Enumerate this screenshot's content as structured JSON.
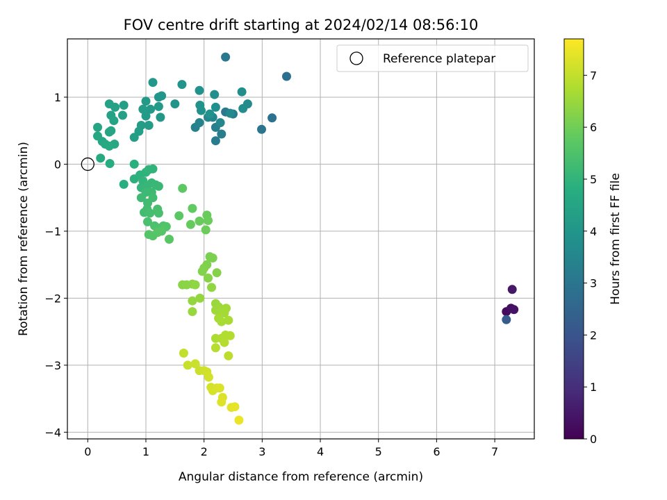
{
  "chart_data": {
    "type": "scatter",
    "title": "FOV centre drift starting at 2024/02/14 08:56:10",
    "xlabel": "Angular distance from reference (arcmin)",
    "ylabel": "Rotation from reference (arcmin)",
    "xlim": [
      -0.35,
      7.68
    ],
    "ylim": [
      -4.1,
      1.87
    ],
    "xticks": [
      0,
      1,
      2,
      3,
      4,
      5,
      6,
      7
    ],
    "yticks": [
      -4,
      -3,
      -2,
      -1,
      0,
      1
    ],
    "grid": true,
    "legend": {
      "placement": "top-right",
      "entries": [
        "Reference platepar"
      ]
    },
    "colorbar": {
      "label": "Hours from first FF file",
      "range": [
        0,
        7.7
      ],
      "ticks": [
        0,
        1,
        2,
        3,
        4,
        5,
        6,
        7
      ],
      "colormap": "viridis"
    },
    "reference": {
      "x": 0,
      "y": 0
    },
    "points": [
      {
        "x": 7.2,
        "y": -2.2,
        "h": 0.2
      },
      {
        "x": 7.28,
        "y": -2.15,
        "h": 0.3
      },
      {
        "x": 7.33,
        "y": -2.17,
        "h": 0.4
      },
      {
        "x": 7.3,
        "y": -1.87,
        "h": 0.5
      },
      {
        "x": 7.2,
        "y": -2.32,
        "h": 2.2
      },
      {
        "x": 3.42,
        "y": 1.31,
        "h": 2.8
      },
      {
        "x": 3.17,
        "y": 0.69,
        "h": 2.9
      },
      {
        "x": 2.99,
        "y": 0.52,
        "h": 3.0
      },
      {
        "x": 2.37,
        "y": 1.6,
        "h": 3.05
      },
      {
        "x": 2.37,
        "y": 0.78,
        "h": 3.1
      },
      {
        "x": 2.5,
        "y": 0.75,
        "h": 3.15
      },
      {
        "x": 2.2,
        "y": 0.35,
        "h": 3.2
      },
      {
        "x": 2.3,
        "y": 0.45,
        "h": 3.25
      },
      {
        "x": 2.2,
        "y": 0.55,
        "h": 3.3
      },
      {
        "x": 1.85,
        "y": 0.55,
        "h": 3.35
      },
      {
        "x": 1.92,
        "y": 0.62,
        "h": 3.4
      },
      {
        "x": 2.15,
        "y": 0.7,
        "h": 3.45
      },
      {
        "x": 2.07,
        "y": 0.7,
        "h": 3.5
      },
      {
        "x": 2.28,
        "y": 0.62,
        "h": 3.55
      },
      {
        "x": 2.45,
        "y": 0.76,
        "h": 3.6
      },
      {
        "x": 2.75,
        "y": 0.9,
        "h": 3.65
      },
      {
        "x": 2.67,
        "y": 0.83,
        "h": 3.7
      },
      {
        "x": 2.65,
        "y": 1.08,
        "h": 3.75
      },
      {
        "x": 2.18,
        "y": 1.04,
        "h": 3.8
      },
      {
        "x": 2.2,
        "y": 0.85,
        "h": 3.82
      },
      {
        "x": 1.95,
        "y": 0.8,
        "h": 3.85
      },
      {
        "x": 1.92,
        "y": 1.1,
        "h": 3.88
      },
      {
        "x": 1.93,
        "y": 0.88,
        "h": 3.9
      },
      {
        "x": 2.1,
        "y": 0.75,
        "h": 3.92
      },
      {
        "x": 1.62,
        "y": 1.19,
        "h": 3.95
      },
      {
        "x": 1.5,
        "y": 0.9,
        "h": 3.97
      },
      {
        "x": 1.27,
        "y": 1.02,
        "h": 4.0
      },
      {
        "x": 1.22,
        "y": 1.0,
        "h": 4.02
      },
      {
        "x": 1.12,
        "y": 1.22,
        "h": 4.05
      },
      {
        "x": 1.25,
        "y": 0.7,
        "h": 4.08
      },
      {
        "x": 1.22,
        "y": 0.86,
        "h": 4.1
      },
      {
        "x": 1.08,
        "y": 0.82,
        "h": 4.12
      },
      {
        "x": 1.0,
        "y": 0.94,
        "h": 4.15
      },
      {
        "x": 1.0,
        "y": 0.72,
        "h": 4.18
      },
      {
        "x": 0.95,
        "y": 0.82,
        "h": 4.2
      },
      {
        "x": 1.05,
        "y": 0.58,
        "h": 4.22
      },
      {
        "x": 0.92,
        "y": 0.58,
        "h": 4.25
      },
      {
        "x": 0.88,
        "y": 0.49,
        "h": 4.28
      },
      {
        "x": 0.8,
        "y": 0.4,
        "h": 4.3
      },
      {
        "x": 0.62,
        "y": 0.88,
        "h": 4.32
      },
      {
        "x": 0.6,
        "y": 0.73,
        "h": 4.35
      },
      {
        "x": 0.47,
        "y": 0.85,
        "h": 4.38
      },
      {
        "x": 0.37,
        "y": 0.9,
        "h": 4.4
      },
      {
        "x": 0.4,
        "y": 0.73,
        "h": 4.42
      },
      {
        "x": 0.45,
        "y": 0.65,
        "h": 4.45
      },
      {
        "x": 0.37,
        "y": 0.48,
        "h": 4.48
      },
      {
        "x": 0.4,
        "y": 0.5,
        "h": 4.5
      },
      {
        "x": 0.17,
        "y": 0.55,
        "h": 4.52
      },
      {
        "x": 0.17,
        "y": 0.42,
        "h": 4.55
      },
      {
        "x": 0.25,
        "y": 0.34,
        "h": 4.58
      },
      {
        "x": 0.3,
        "y": 0.3,
        "h": 4.6
      },
      {
        "x": 0.46,
        "y": 0.3,
        "h": 4.62
      },
      {
        "x": 0.37,
        "y": 0.27,
        "h": 4.65
      },
      {
        "x": 0.22,
        "y": 0.09,
        "h": 4.68
      },
      {
        "x": 0.38,
        "y": 0.01,
        "h": 4.7
      },
      {
        "x": 0.62,
        "y": -0.3,
        "h": 4.8
      },
      {
        "x": 0.8,
        "y": 0.0,
        "h": 4.85
      },
      {
        "x": 0.8,
        "y": -0.22,
        "h": 4.9
      },
      {
        "x": 0.9,
        "y": -0.16,
        "h": 4.92
      },
      {
        "x": 1.0,
        "y": -0.12,
        "h": 4.95
      },
      {
        "x": 1.05,
        "y": -0.08,
        "h": 4.98
      },
      {
        "x": 1.12,
        "y": -0.07,
        "h": 5.0
      },
      {
        "x": 0.95,
        "y": -0.25,
        "h": 5.02
      },
      {
        "x": 0.92,
        "y": -0.35,
        "h": 5.05
      },
      {
        "x": 1.02,
        "y": -0.33,
        "h": 5.08
      },
      {
        "x": 1.1,
        "y": -0.28,
        "h": 5.1
      },
      {
        "x": 1.17,
        "y": -0.31,
        "h": 5.12
      },
      {
        "x": 1.22,
        "y": -0.33,
        "h": 5.15
      },
      {
        "x": 1.0,
        "y": -0.42,
        "h": 5.18
      },
      {
        "x": 1.1,
        "y": -0.42,
        "h": 5.2
      },
      {
        "x": 0.92,
        "y": -0.5,
        "h": 5.22
      },
      {
        "x": 1.03,
        "y": -0.58,
        "h": 5.25
      },
      {
        "x": 1.12,
        "y": -0.5,
        "h": 5.28
      },
      {
        "x": 0.97,
        "y": -0.72,
        "h": 5.3
      },
      {
        "x": 1.02,
        "y": -0.67,
        "h": 5.32
      },
      {
        "x": 1.07,
        "y": -0.73,
        "h": 5.35
      },
      {
        "x": 1.2,
        "y": -0.67,
        "h": 5.38
      },
      {
        "x": 1.22,
        "y": -0.73,
        "h": 5.4
      },
      {
        "x": 1.03,
        "y": -0.86,
        "h": 5.42
      },
      {
        "x": 1.15,
        "y": -0.92,
        "h": 5.45
      },
      {
        "x": 1.2,
        "y": -0.95,
        "h": 5.48
      },
      {
        "x": 1.25,
        "y": -0.98,
        "h": 5.5
      },
      {
        "x": 1.3,
        "y": -0.92,
        "h": 5.52
      },
      {
        "x": 1.35,
        "y": -0.93,
        "h": 5.55
      },
      {
        "x": 1.05,
        "y": -1.05,
        "h": 5.58
      },
      {
        "x": 1.12,
        "y": -1.07,
        "h": 5.6
      },
      {
        "x": 1.2,
        "y": -1.02,
        "h": 5.62
      },
      {
        "x": 1.27,
        "y": -1.0,
        "h": 5.65
      },
      {
        "x": 1.4,
        "y": -1.12,
        "h": 5.68
      },
      {
        "x": 1.57,
        "y": -0.77,
        "h": 5.72
      },
      {
        "x": 1.63,
        "y": -0.36,
        "h": 5.75
      },
      {
        "x": 1.8,
        "y": -0.66,
        "h": 5.8
      },
      {
        "x": 1.77,
        "y": -0.9,
        "h": 5.85
      },
      {
        "x": 1.92,
        "y": -0.85,
        "h": 5.88
      },
      {
        "x": 2.05,
        "y": -0.76,
        "h": 5.9
      },
      {
        "x": 2.07,
        "y": -0.84,
        "h": 5.92
      },
      {
        "x": 2.03,
        "y": -0.98,
        "h": 5.95
      },
      {
        "x": 2.1,
        "y": -1.38,
        "h": 6.1
      },
      {
        "x": 2.15,
        "y": -1.4,
        "h": 6.15
      },
      {
        "x": 2.05,
        "y": -1.5,
        "h": 6.18
      },
      {
        "x": 2.0,
        "y": -1.55,
        "h": 6.2
      },
      {
        "x": 1.97,
        "y": -1.6,
        "h": 6.22
      },
      {
        "x": 2.22,
        "y": -1.62,
        "h": 6.25
      },
      {
        "x": 2.07,
        "y": -1.7,
        "h": 6.28
      },
      {
        "x": 1.63,
        "y": -1.8,
        "h": 6.3
      },
      {
        "x": 1.7,
        "y": -1.8,
        "h": 6.32
      },
      {
        "x": 1.8,
        "y": -1.79,
        "h": 6.35
      },
      {
        "x": 1.85,
        "y": -1.8,
        "h": 6.38
      },
      {
        "x": 2.13,
        "y": -1.84,
        "h": 6.4
      },
      {
        "x": 1.8,
        "y": -2.04,
        "h": 6.42
      },
      {
        "x": 1.93,
        "y": -2.0,
        "h": 6.45
      },
      {
        "x": 1.8,
        "y": -2.2,
        "h": 6.48
      },
      {
        "x": 2.2,
        "y": -2.08,
        "h": 6.5
      },
      {
        "x": 2.25,
        "y": -2.13,
        "h": 6.52
      },
      {
        "x": 2.2,
        "y": -2.18,
        "h": 6.55
      },
      {
        "x": 2.3,
        "y": -2.18,
        "h": 6.58
      },
      {
        "x": 2.38,
        "y": -2.15,
        "h": 6.6
      },
      {
        "x": 2.35,
        "y": -2.22,
        "h": 6.62
      },
      {
        "x": 2.25,
        "y": -2.3,
        "h": 6.65
      },
      {
        "x": 2.3,
        "y": -2.35,
        "h": 6.68
      },
      {
        "x": 2.42,
        "y": -2.33,
        "h": 6.7
      },
      {
        "x": 2.2,
        "y": -2.6,
        "h": 6.72
      },
      {
        "x": 2.3,
        "y": -2.6,
        "h": 6.75
      },
      {
        "x": 2.37,
        "y": -2.55,
        "h": 6.78
      },
      {
        "x": 2.45,
        "y": -2.56,
        "h": 6.8
      },
      {
        "x": 2.35,
        "y": -2.66,
        "h": 6.82
      },
      {
        "x": 2.2,
        "y": -2.74,
        "h": 6.85
      },
      {
        "x": 2.42,
        "y": -2.86,
        "h": 6.9
      },
      {
        "x": 1.65,
        "y": -2.82,
        "h": 7.0
      },
      {
        "x": 1.72,
        "y": -3.0,
        "h": 7.05
      },
      {
        "x": 1.85,
        "y": -2.98,
        "h": 7.08
      },
      {
        "x": 1.92,
        "y": -3.08,
        "h": 7.1
      },
      {
        "x": 2.0,
        "y": -3.08,
        "h": 7.12
      },
      {
        "x": 2.05,
        "y": -3.1,
        "h": 7.15
      },
      {
        "x": 2.08,
        "y": -3.18,
        "h": 7.18
      },
      {
        "x": 2.12,
        "y": -3.33,
        "h": 7.2
      },
      {
        "x": 2.15,
        "y": -3.38,
        "h": 7.22
      },
      {
        "x": 2.22,
        "y": -3.34,
        "h": 7.25
      },
      {
        "x": 2.27,
        "y": -3.34,
        "h": 7.28
      },
      {
        "x": 2.32,
        "y": -3.48,
        "h": 7.3
      },
      {
        "x": 2.3,
        "y": -3.55,
        "h": 7.32
      },
      {
        "x": 2.47,
        "y": -3.63,
        "h": 7.38
      },
      {
        "x": 2.53,
        "y": -3.62,
        "h": 7.42
      },
      {
        "x": 2.6,
        "y": -3.82,
        "h": 7.5
      }
    ]
  }
}
